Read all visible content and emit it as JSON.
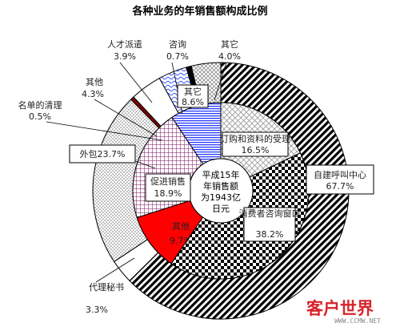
{
  "chart_data": {
    "type": "pie",
    "title": "各种业务的年销售额构成比例",
    "center_label": [
      "平成15年",
      "年销售额",
      "为1943亿",
      "日元"
    ],
    "outer_ring": [
      {
        "name": "自建呼叫中心",
        "value": 67.7,
        "value_text": "67.7%",
        "pattern": "diag",
        "color": "#000000"
      },
      {
        "name": "代理秘书",
        "value": 3.3,
        "value_text": "3.3%",
        "pattern": "white",
        "color": "#ffffff"
      },
      {
        "name": "外包",
        "value": 23.7,
        "value_text": "外包23.7%",
        "pattern": "dots",
        "color": "#bbbbbb"
      },
      {
        "name": "名单的清理",
        "value": 0.5,
        "value_text": "0.5%",
        "pattern": "solid",
        "color": "#7a0000"
      },
      {
        "name": "其他",
        "value": 4.3,
        "value_text": "4.3%",
        "pattern": "white",
        "color": "#ffffff"
      },
      {
        "name": "人才派遣",
        "value": 3.9,
        "value_text": "3.9%",
        "pattern": "wave",
        "color": "#3050ff"
      },
      {
        "name": "咨询",
        "value": 0.7,
        "value_text": "0.7%",
        "pattern": "solid",
        "color": "#000000"
      },
      {
        "name": "其它",
        "value": 4.0,
        "value_text": "4.0%",
        "pattern": "dgrid",
        "color": "#808080"
      }
    ],
    "inner_ring": [
      {
        "name": "订购和资料的受理",
        "value": 16.5,
        "value_text": "16.5%",
        "pattern": "cross",
        "color": "#999999"
      },
      {
        "name": "消费者咨询窗口",
        "value": 38.2,
        "value_text": "38.2%",
        "pattern": "checker",
        "color": "#000000"
      },
      {
        "name": "其他",
        "value": 9.7,
        "value_text": "9.7%",
        "pattern": "solid",
        "color": "#ff0000"
      },
      {
        "name": "促进销售",
        "value": 18.9,
        "value_text": "18.9%",
        "pattern": "grid",
        "color": "#7a1060"
      },
      {
        "name": "其它",
        "value": 8.6,
        "value_text": "8.6%",
        "pattern": "stripes",
        "color": "#2a3cff"
      }
    ]
  },
  "watermark": {
    "text": "客户世界",
    "url": "WWW.CCMW.NET"
  }
}
